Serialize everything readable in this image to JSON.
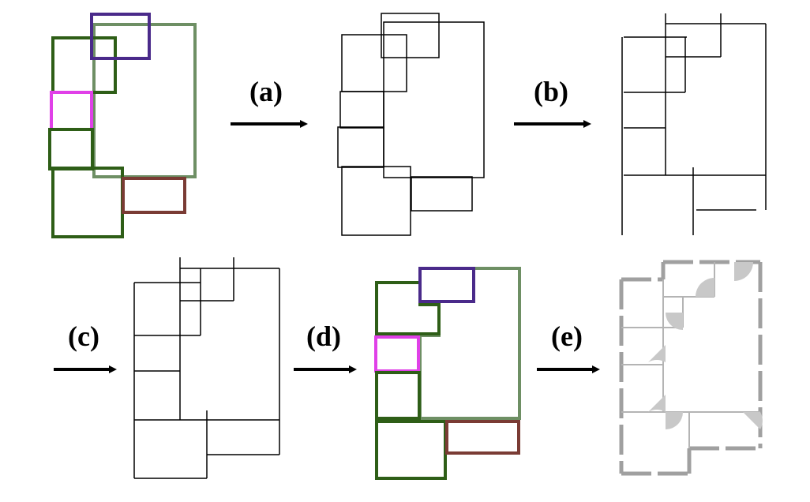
{
  "steps": [
    {
      "label": "(a)"
    },
    {
      "label": "(b)"
    },
    {
      "label": "(c)"
    },
    {
      "label": "(d)"
    },
    {
      "label": "(e)"
    }
  ],
  "colors": {
    "room_dark_green": "#2e5e17",
    "room_light_green": "#6e8f64",
    "room_purple": "#4a2a8a",
    "room_magenta": "#e040e8",
    "room_brown": "#7a3b34",
    "line_black": "#000000",
    "wall_gray": "#a0a0a0",
    "door_gray": "#c8c8c8"
  }
}
